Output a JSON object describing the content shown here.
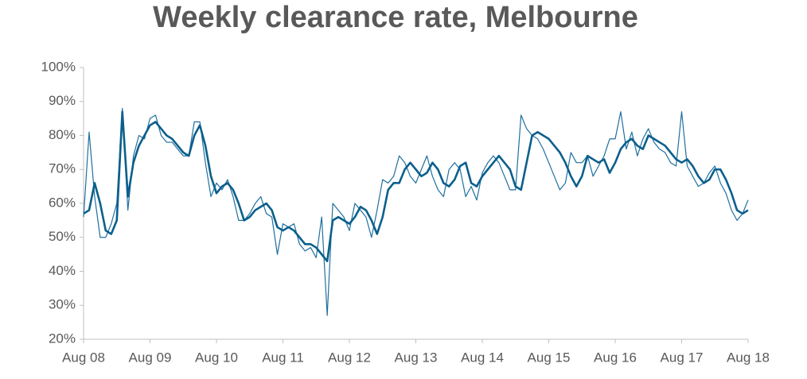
{
  "chart_data": {
    "type": "line",
    "title": "Weekly clearance rate, Melbourne",
    "categories": [
      "Aug 08",
      null,
      null,
      null,
      null,
      null,
      null,
      null,
      null,
      null,
      null,
      null,
      "Aug 09",
      null,
      null,
      null,
      null,
      null,
      null,
      null,
      null,
      null,
      null,
      null,
      "Aug 10",
      null,
      null,
      null,
      null,
      null,
      null,
      null,
      null,
      null,
      null,
      null,
      "Aug 11",
      null,
      null,
      null,
      null,
      null,
      null,
      null,
      null,
      null,
      null,
      null,
      "Aug 12",
      null,
      null,
      null,
      null,
      null,
      null,
      null,
      null,
      null,
      null,
      null,
      "Aug 13",
      null,
      null,
      null,
      null,
      null,
      null,
      null,
      null,
      null,
      null,
      null,
      "Aug 14",
      null,
      null,
      null,
      null,
      null,
      null,
      null,
      null,
      null,
      null,
      null,
      "Aug 15",
      null,
      null,
      null,
      null,
      null,
      null,
      null,
      null,
      null,
      null,
      null,
      "Aug 16",
      null,
      null,
      null,
      null,
      null,
      null,
      null,
      null,
      null,
      null,
      null,
      "Aug 17",
      null,
      null,
      null,
      null,
      null,
      null,
      null,
      null,
      null,
      null,
      null,
      "Aug 18"
    ],
    "series": [
      {
        "color": "#1f6f9f",
        "width": 1.2,
        "values": [
          56,
          81,
          62,
          50,
          50,
          54,
          60,
          88,
          58,
          74,
          80,
          79,
          85,
          86,
          80,
          78,
          78,
          76,
          74,
          74,
          84,
          84,
          72,
          62,
          66,
          64,
          67,
          62,
          55,
          55,
          57,
          60,
          62,
          57,
          56,
          45,
          54,
          53,
          54,
          48,
          46,
          47,
          44,
          56,
          27,
          60,
          58,
          56,
          52,
          60,
          58,
          56,
          50,
          58,
          67,
          66,
          68,
          74,
          72,
          68,
          66,
          70,
          74,
          68,
          64,
          62,
          70,
          72,
          70,
          62,
          65,
          61,
          69,
          72,
          74,
          72,
          68,
          64,
          64,
          86,
          82,
          80,
          79,
          76,
          72,
          68,
          64,
          66,
          75,
          72,
          72,
          74,
          68,
          71,
          74,
          79,
          79,
          87,
          76,
          81,
          74,
          79,
          82,
          78,
          76,
          75,
          72,
          71,
          87,
          71,
          68,
          65,
          66,
          69,
          71,
          66,
          63,
          58,
          55,
          57,
          61
        ]
      },
      {
        "color": "#0b5f8c",
        "width": 2.6,
        "values": [
          57,
          58,
          66,
          60,
          52,
          51,
          55,
          87,
          62,
          72,
          77,
          80,
          83,
          84,
          82,
          80,
          79,
          77,
          75,
          74,
          80,
          83,
          77,
          68,
          63,
          65,
          66,
          64,
          60,
          55,
          56,
          58,
          59,
          60,
          58,
          53,
          52,
          53,
          52,
          50,
          48,
          48,
          47,
          45,
          43,
          55,
          56,
          55,
          54,
          56,
          59,
          58,
          55,
          51,
          56,
          64,
          66,
          66,
          70,
          72,
          70,
          68,
          69,
          72,
          70,
          66,
          65,
          67,
          71,
          72,
          66,
          65,
          68,
          70,
          72,
          74,
          72,
          70,
          65,
          64,
          72,
          80,
          81,
          80,
          79,
          77,
          75,
          72,
          68,
          65,
          68,
          74,
          73,
          72,
          73,
          69,
          72,
          76,
          78,
          79,
          77,
          76,
          80,
          79,
          78,
          77,
          75,
          73,
          72,
          73,
          71,
          68,
          66,
          67,
          70,
          70,
          67,
          63,
          58,
          57,
          58
        ]
      }
    ],
    "ylim": [
      20,
      100
    ],
    "yticks": [
      {
        "value": 20,
        "label": "20%"
      },
      {
        "value": 30,
        "label": "30%"
      },
      {
        "value": 40,
        "label": "40%"
      },
      {
        "value": 50,
        "label": "50%"
      },
      {
        "value": 60,
        "label": "60%"
      },
      {
        "value": 70,
        "label": "70%"
      },
      {
        "value": 80,
        "label": "80%"
      },
      {
        "value": 90,
        "label": "90%"
      },
      {
        "value": 100,
        "label": "100%"
      }
    ],
    "grid": false
  }
}
